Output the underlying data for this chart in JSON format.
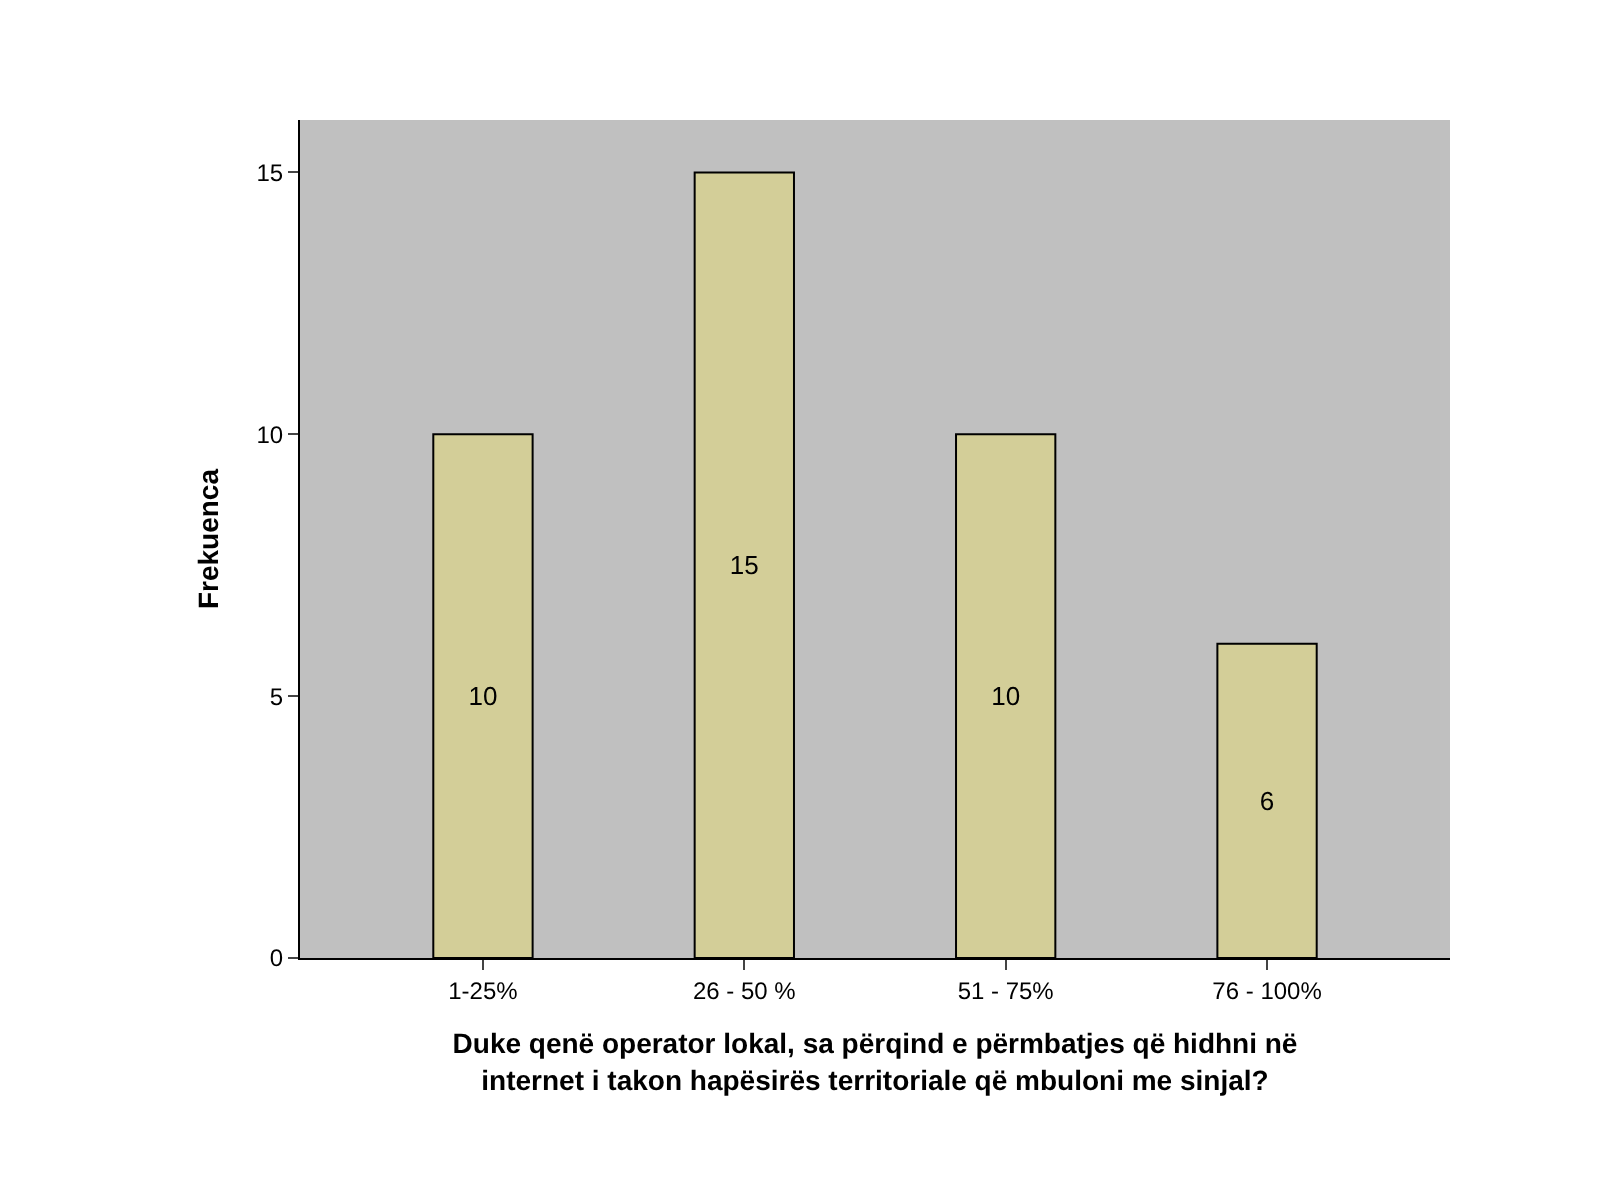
{
  "chart_data": {
    "type": "bar",
    "xlabel": "Duke qenë operator lokal, sa përqind e përmbatjes që hidhni në internet i takon hapësirës territoriale që mbuloni me sinjal?",
    "ylabel": "Frekuenca",
    "categories": [
      "1-25%",
      "26 - 50 %",
      "51 - 75%",
      "76 - 100%"
    ],
    "values": [
      10,
      15,
      10,
      6
    ],
    "color": "#d3ce98",
    "ylim": [
      0,
      16
    ],
    "yticks": [
      0,
      5,
      10,
      15
    ],
    "grid": false,
    "data_labels": true
  }
}
